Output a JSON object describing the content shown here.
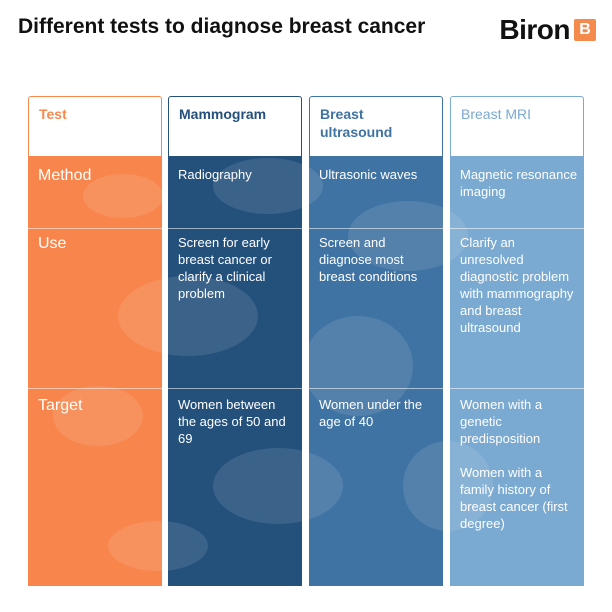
{
  "title": "Different tests to diagnose breast cancer",
  "logo": {
    "word": "Biron",
    "badge": "B"
  },
  "header": {
    "label": "Test",
    "tests": [
      "Mammogram",
      "Breast ultrasound",
      "Breast MRI"
    ]
  },
  "rows": {
    "method": {
      "label": "Method",
      "values": [
        "Radiography",
        "Ultrasonic waves",
        "Magnetic resonance imaging"
      ]
    },
    "use": {
      "label": "Use",
      "values": [
        "Screen for early breast cancer or clarify a clinical problem",
        "Screen and diagnose most breast conditions",
        "Clarify an unresolved diagnostic problem with mammography and breast ultrasound"
      ]
    },
    "target": {
      "label": "Target",
      "values": [
        "Women between the ages of 50 and 69",
        "Women under the age of 40",
        "Women with a genetic predisposition",
        "Women with a family history of breast cancer (first degree)"
      ]
    }
  },
  "colors": {
    "orange": "#f7854c",
    "navy": "#24507c",
    "mid_blue": "#3f73a3",
    "light_blue": "#7aa9d1"
  },
  "icons": [
    "biron-logo-icon"
  ]
}
